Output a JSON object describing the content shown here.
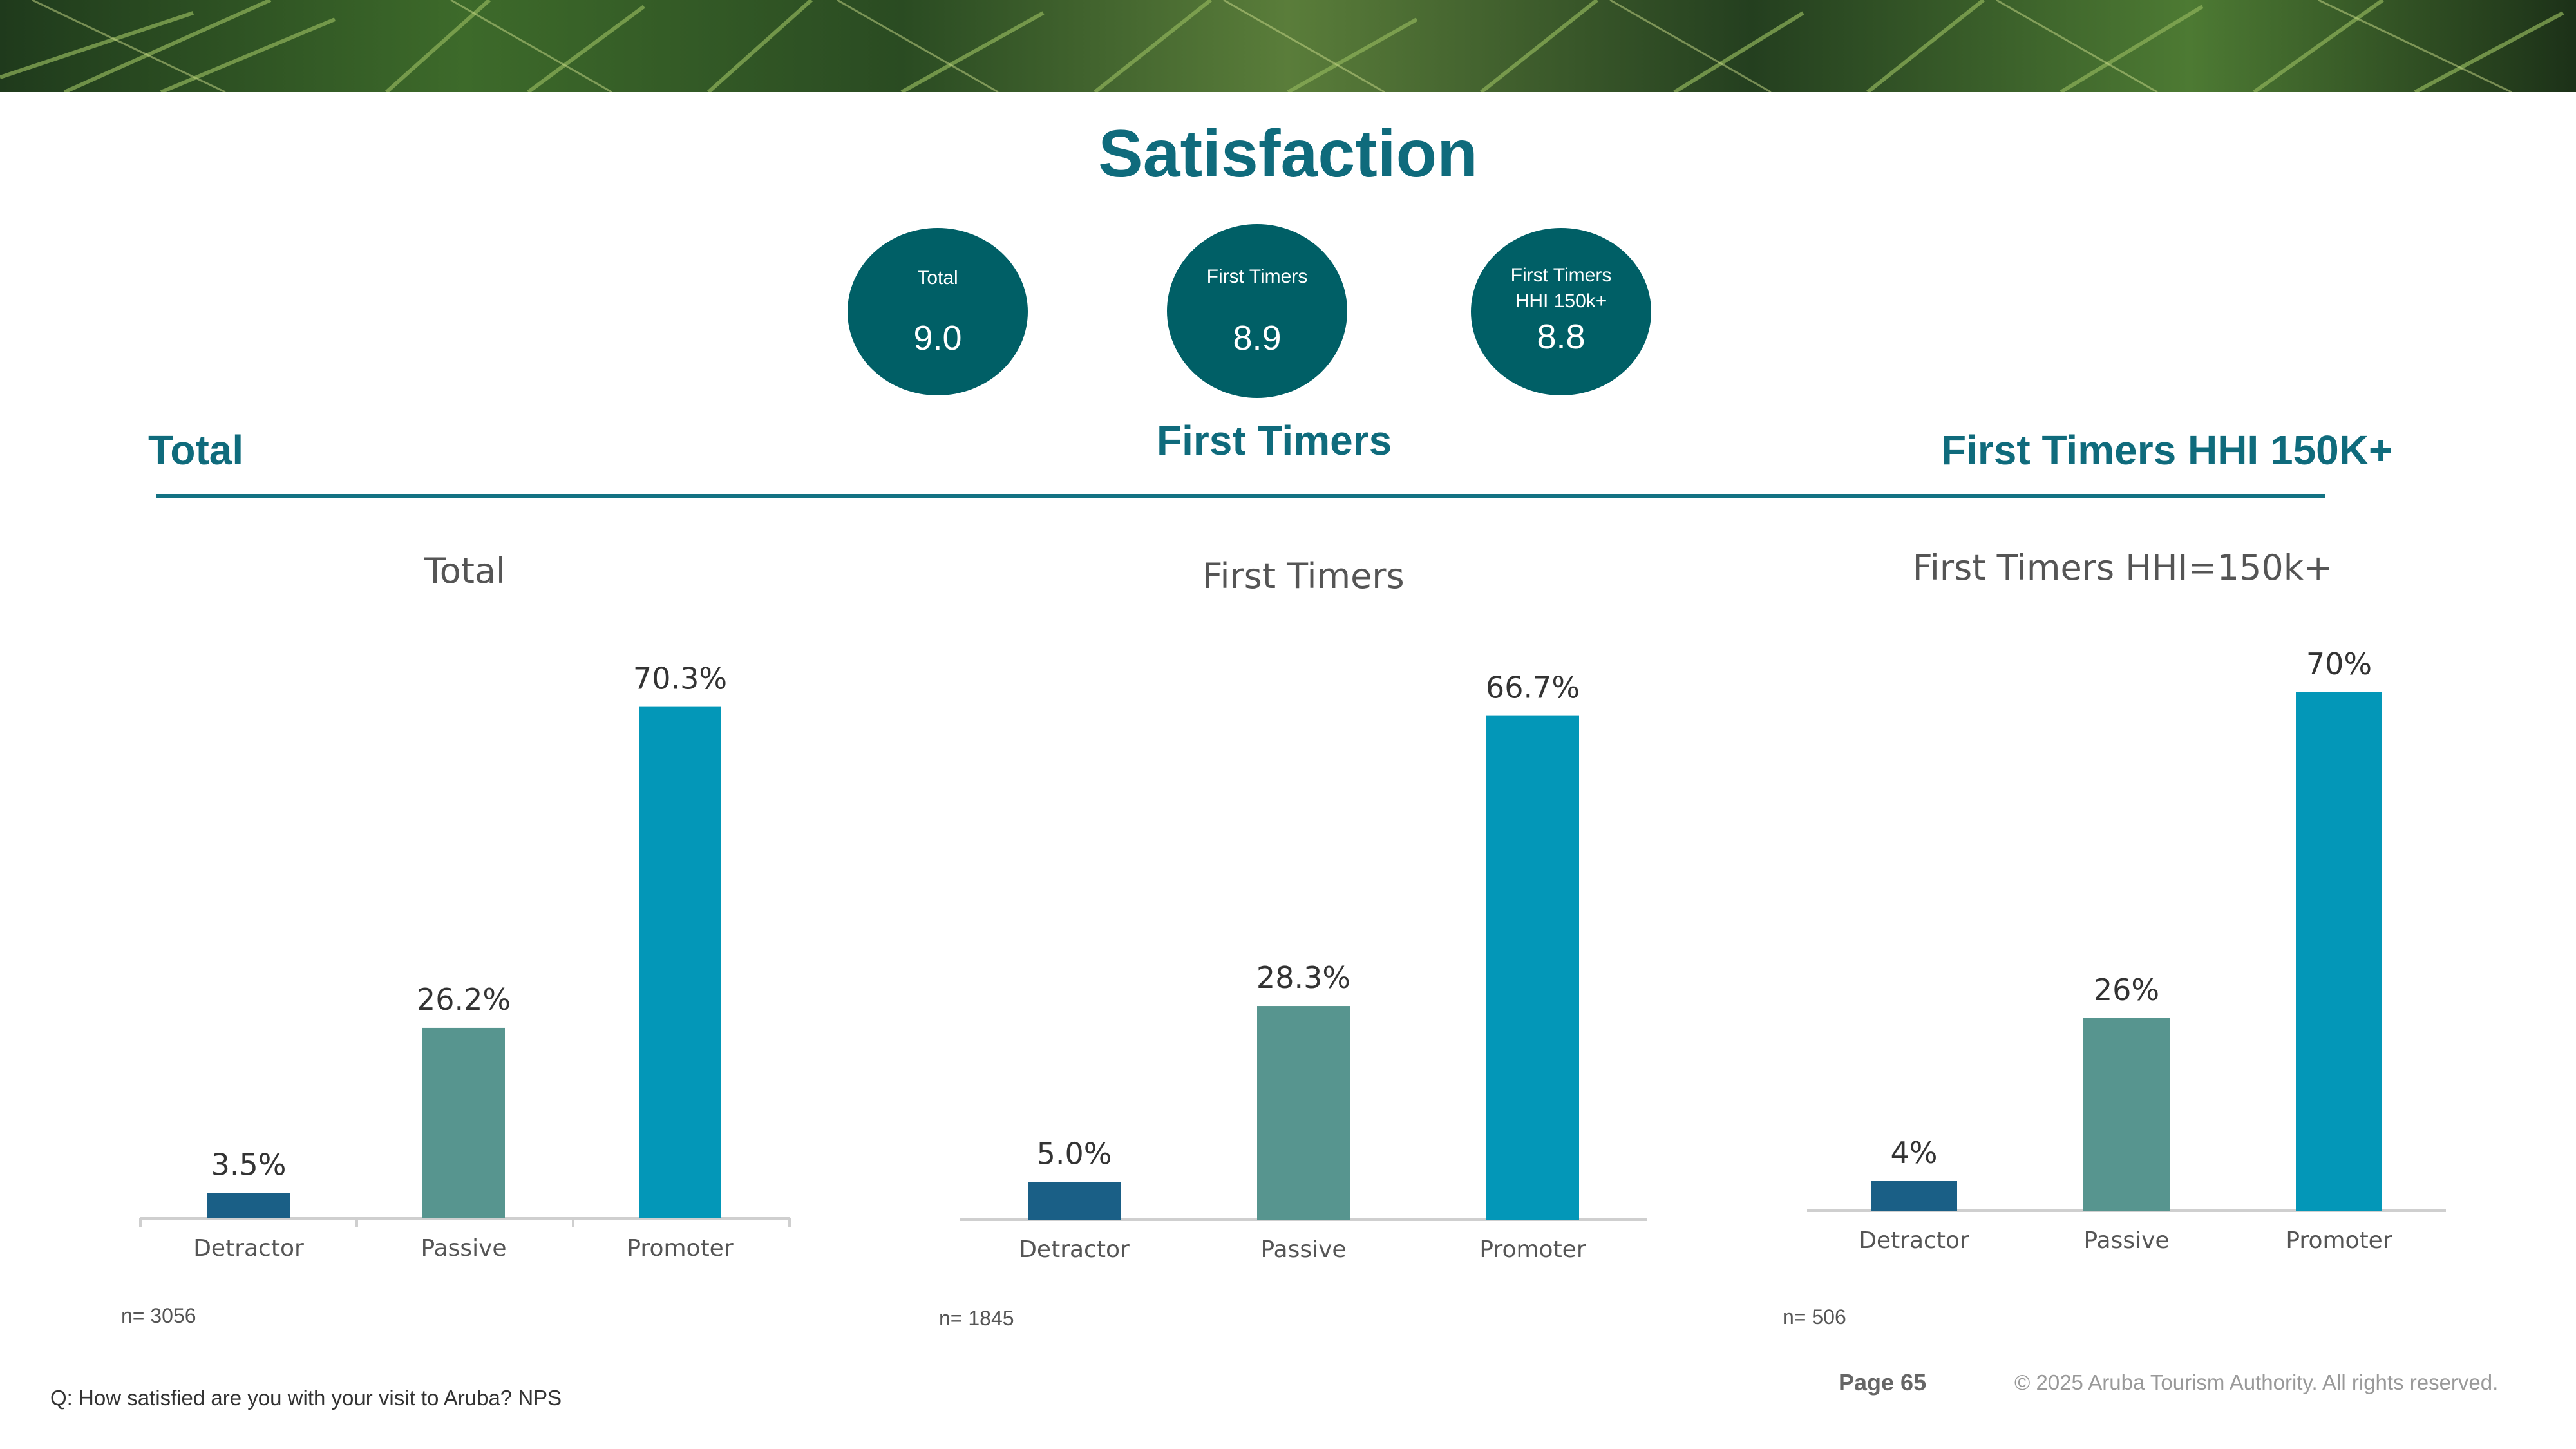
{
  "page": {
    "title": "Satisfaction",
    "question": "Q: How satisfied are you with your visit to Aruba? NPS",
    "page_number": "Page 65",
    "copyright": "© 2025 Aruba Tourism Authority. All rights reserved."
  },
  "kpis": [
    {
      "label_line1": "Total",
      "label_line2": "",
      "value": "9.0"
    },
    {
      "label_line1": "First Timers",
      "label_line2": "",
      "value": "8.9"
    },
    {
      "label_line1": "First Timers",
      "label_line2": "HHI 150k+",
      "value": "8.8"
    }
  ],
  "sections": {
    "left": "Total",
    "center": "First Timers",
    "right": "First Timers HHI 150K+"
  },
  "colors": {
    "detractor": "#1a5f86",
    "passive": "#57958f",
    "promoter": "#0397b8",
    "accent": "#0f6b7c"
  },
  "chart_data": [
    {
      "type": "bar",
      "title": "Total",
      "categories": [
        "Detractor",
        "Passive",
        "Promoter"
      ],
      "values": [
        3.5,
        26.2,
        70.3
      ],
      "data_labels": [
        "3.5%",
        "26.2%",
        "70.3%"
      ],
      "n": "n= 3056"
    },
    {
      "type": "bar",
      "title": "First Timers",
      "categories": [
        "Detractor",
        "Passive",
        "Promoter"
      ],
      "values": [
        5.0,
        28.3,
        66.7
      ],
      "data_labels": [
        "5.0%",
        "28.3%",
        "66.7%"
      ],
      "n": "n= 1845"
    },
    {
      "type": "bar",
      "title": "First Timers HHI=150k+",
      "categories": [
        "Detractor",
        "Passive",
        "Promoter"
      ],
      "values": [
        4,
        26,
        70
      ],
      "data_labels": [
        "4%",
        "26%",
        "70%"
      ],
      "n": "n= 506"
    }
  ]
}
